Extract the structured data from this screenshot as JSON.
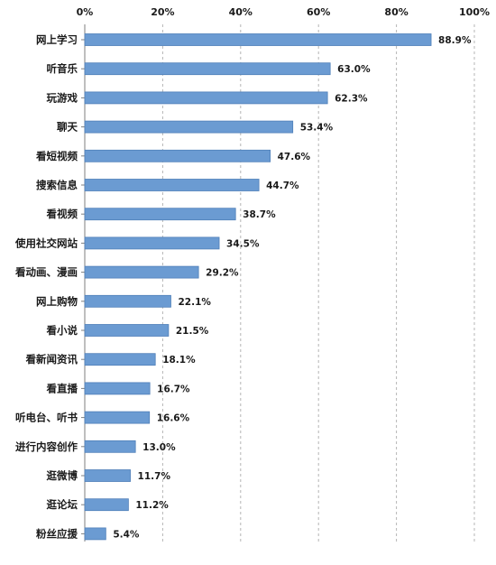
{
  "chart_data": {
    "type": "bar",
    "orientation": "horizontal",
    "title": "",
    "xlabel": "",
    "ylabel": "",
    "xlim": [
      0,
      100
    ],
    "x_ticks": [
      0,
      20,
      40,
      60,
      80,
      100
    ],
    "x_tick_labels": [
      "0%",
      "20%",
      "40%",
      "60%",
      "80%",
      "100%"
    ],
    "grid": true,
    "legend": "none",
    "bar_color": "#6b9bd2",
    "bar_edge_color": "#4f7fb8",
    "categories": [
      "网上学习",
      "听音乐",
      "玩游戏",
      "聊天",
      "看短视频",
      "搜索信息",
      "看视频",
      "使用社交网站",
      "看动画、漫画",
      "网上购物",
      "看小说",
      "看新闻资讯",
      "看直播",
      "听电台、听书",
      "进行内容创作",
      "逛微博",
      "逛论坛",
      "粉丝应援"
    ],
    "values": [
      88.9,
      63.0,
      62.3,
      53.4,
      47.6,
      44.7,
      38.7,
      34.5,
      29.2,
      22.1,
      21.5,
      18.1,
      16.7,
      16.6,
      13.0,
      11.7,
      11.2,
      5.4
    ],
    "value_labels": [
      "88.9%",
      "63.0%",
      "62.3%",
      "53.4%",
      "47.6%",
      "44.7%",
      "38.7%",
      "34.5%",
      "29.2%",
      "22.1%",
      "21.5%",
      "18.1%",
      "16.7%",
      "16.6%",
      "13.0%",
      "11.7%",
      "11.2%",
      "5.4%"
    ]
  }
}
